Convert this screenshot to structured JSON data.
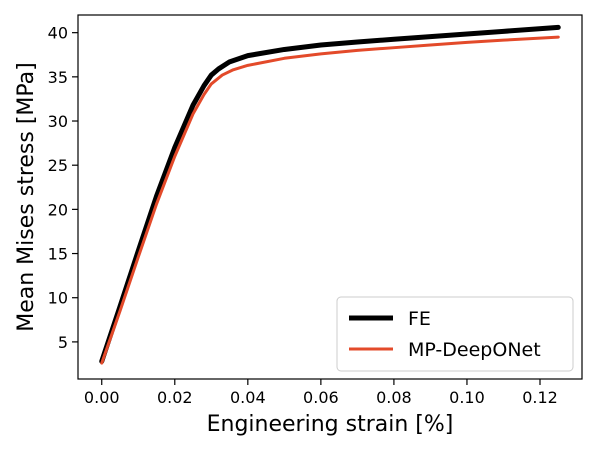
{
  "chart_data": {
    "type": "line",
    "title": "",
    "xlabel": "Engineering strain [%]",
    "ylabel": "Mean Mises stress [MPa]",
    "xlim": [
      -0.0065,
      0.1315
    ],
    "ylim": [
      0.8,
      42.0
    ],
    "xticks": [
      0.0,
      0.02,
      0.04,
      0.06,
      0.08,
      0.1,
      0.12
    ],
    "xtick_labels": [
      "0.00",
      "0.02",
      "0.04",
      "0.06",
      "0.08",
      "0.10",
      "0.12"
    ],
    "yticks": [
      5,
      10,
      15,
      20,
      25,
      30,
      35,
      40
    ],
    "ytick_labels": [
      "5",
      "10",
      "15",
      "20",
      "25",
      "30",
      "35",
      "40"
    ],
    "grid": false,
    "legend_position": "bottom-right",
    "series": [
      {
        "name": "FE",
        "color": "#000000",
        "x": [
          0.0,
          0.005,
          0.01,
          0.015,
          0.02,
          0.025,
          0.028,
          0.03,
          0.032,
          0.035,
          0.04,
          0.05,
          0.06,
          0.07,
          0.08,
          0.09,
          0.1,
          0.11,
          0.125
        ],
        "y": [
          2.8,
          9.0,
          15.3,
          21.5,
          27.0,
          31.8,
          34.0,
          35.2,
          35.9,
          36.7,
          37.4,
          38.1,
          38.6,
          38.95,
          39.25,
          39.55,
          39.85,
          40.15,
          40.6
        ]
      },
      {
        "name": "MP-DeepONet",
        "color": "#e34a2a",
        "x": [
          0.0,
          0.005,
          0.01,
          0.015,
          0.02,
          0.025,
          0.028,
          0.03,
          0.033,
          0.036,
          0.04,
          0.05,
          0.06,
          0.07,
          0.08,
          0.09,
          0.1,
          0.11,
          0.125
        ],
        "y": [
          2.6,
          8.5,
          14.6,
          20.6,
          26.0,
          30.8,
          33.0,
          34.2,
          35.2,
          35.8,
          36.3,
          37.1,
          37.6,
          38.0,
          38.3,
          38.6,
          38.9,
          39.15,
          39.5
        ]
      }
    ]
  }
}
